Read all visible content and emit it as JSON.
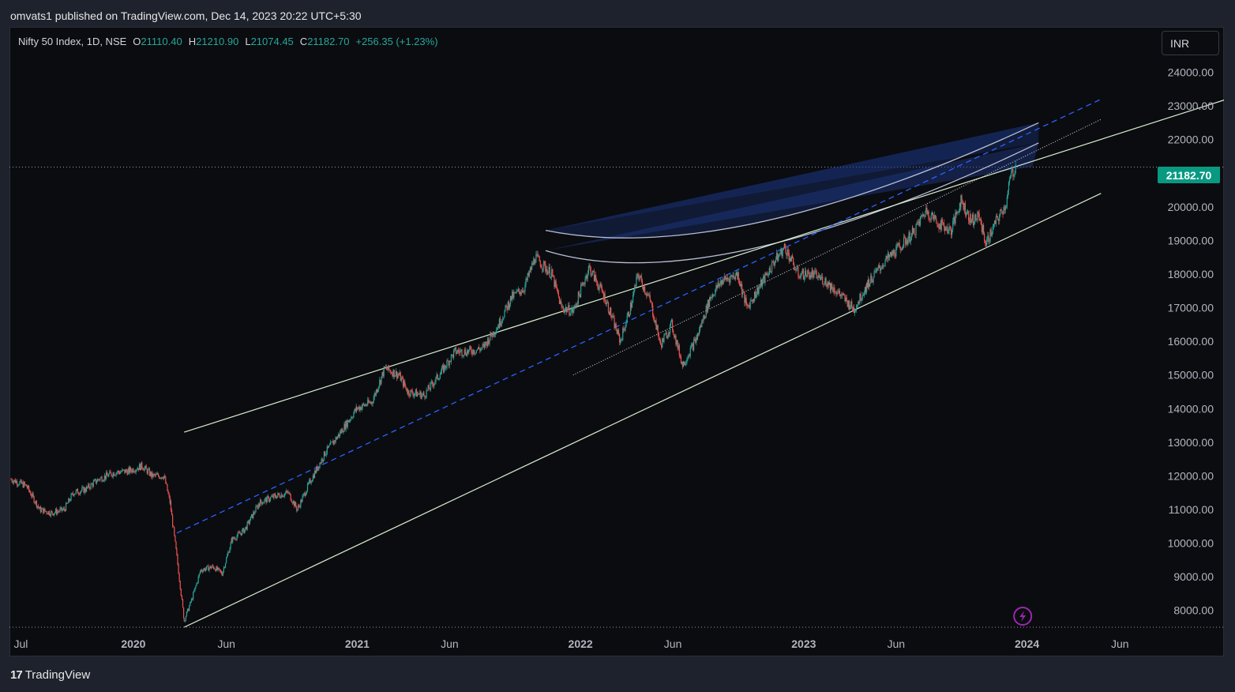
{
  "header": {
    "published_text": "omvats1 published on TradingView.com, Dec 14, 2023 20:22 UTC+5:30"
  },
  "legend": {
    "symbol": "Nifty 50 Index, 1D, NSE",
    "open_label": "O",
    "open_value": "21110.40",
    "high_label": "H",
    "high_value": "21210.90",
    "low_label": "L",
    "low_value": "21074.45",
    "close_label": "C",
    "close_value": "21182.70",
    "change": "+256.35 (+1.23%)"
  },
  "currency_button": "INR",
  "last_price_tag": "21182.70",
  "footer": {
    "brand": "TradingView",
    "logo_text": "17"
  },
  "colors": {
    "background": "#0b0c10",
    "up": "#26a69a",
    "down": "#ef5350",
    "channel": "#d8efcf",
    "midline": "#2962ff",
    "arc": "#b7bfd6",
    "fan_fill": "#1e3a8a",
    "price_tag": "#089981",
    "alert_icon": "#9c27b0"
  },
  "chart_data": {
    "type": "candlestick",
    "title": "Nifty 50 Index, 1D, NSE",
    "ylim": [
      7500,
      25000
    ],
    "y_ticks": [
      "24000.00",
      "23000.00",
      "22000.00",
      "21000.00",
      "20000.00",
      "19000.00",
      "18000.00",
      "17000.00",
      "16000.00",
      "15000.00",
      "14000.00",
      "13000.00",
      "12000.00",
      "11000.00",
      "10000.00",
      "9000.00",
      "8000.00"
    ],
    "x_range": [
      "2019-06-15",
      "2024-07-30"
    ],
    "x_ticks": [
      {
        "label": "Jul",
        "date": "2019-07-01",
        "bold": false
      },
      {
        "label": "2020",
        "date": "2020-01-01",
        "bold": true
      },
      {
        "label": "Jun",
        "date": "2020-06-01",
        "bold": false
      },
      {
        "label": "2021",
        "date": "2021-01-01",
        "bold": true
      },
      {
        "label": "Jun",
        "date": "2021-06-01",
        "bold": false
      },
      {
        "label": "2022",
        "date": "2022-01-01",
        "bold": true
      },
      {
        "label": "Jun",
        "date": "2022-06-01",
        "bold": false
      },
      {
        "label": "2023",
        "date": "2023-01-01",
        "bold": true
      },
      {
        "label": "Jun",
        "date": "2023-06-01",
        "bold": false
      },
      {
        "label": "2024",
        "date": "2024-01-01",
        "bold": true
      },
      {
        "label": "Jun",
        "date": "2024-06-01",
        "bold": false
      }
    ],
    "series": [
      {
        "name": "Nifty 50",
        "points": [
          [
            "2019-06-15",
            11900
          ],
          [
            "2019-07-10",
            11700
          ],
          [
            "2019-08-01",
            11000
          ],
          [
            "2019-08-20",
            10900
          ],
          [
            "2019-09-10",
            11000
          ],
          [
            "2019-09-25",
            11500
          ],
          [
            "2019-10-15",
            11600
          ],
          [
            "2019-11-05",
            11900
          ],
          [
            "2019-12-01",
            12100
          ],
          [
            "2019-12-25",
            12150
          ],
          [
            "2020-01-15",
            12300
          ],
          [
            "2020-02-01",
            12000
          ],
          [
            "2020-02-20",
            12000
          ],
          [
            "2020-03-01",
            11200
          ],
          [
            "2020-03-12",
            9600
          ],
          [
            "2020-03-24",
            7700
          ],
          [
            "2020-04-05",
            8300
          ],
          [
            "2020-04-20",
            9200
          ],
          [
            "2020-05-10",
            9300
          ],
          [
            "2020-05-25",
            9100
          ],
          [
            "2020-06-10",
            10100
          ],
          [
            "2020-07-01",
            10400
          ],
          [
            "2020-07-25",
            11200
          ],
          [
            "2020-08-20",
            11400
          ],
          [
            "2020-09-10",
            11500
          ],
          [
            "2020-09-25",
            11000
          ],
          [
            "2020-10-15",
            11800
          ],
          [
            "2020-11-10",
            12700
          ],
          [
            "2020-12-01",
            13200
          ],
          [
            "2020-12-31",
            14000
          ],
          [
            "2021-01-25",
            14200
          ],
          [
            "2021-02-15",
            15200
          ],
          [
            "2021-03-10",
            15000
          ],
          [
            "2021-03-25",
            14500
          ],
          [
            "2021-04-20",
            14400
          ],
          [
            "2021-05-15",
            15000
          ],
          [
            "2021-06-10",
            15700
          ],
          [
            "2021-07-01",
            15700
          ],
          [
            "2021-07-25",
            15800
          ],
          [
            "2021-08-20",
            16500
          ],
          [
            "2021-09-10",
            17300
          ],
          [
            "2021-10-01",
            17600
          ],
          [
            "2021-10-19",
            18500
          ],
          [
            "2021-11-15",
            18000
          ],
          [
            "2021-12-01",
            17000
          ],
          [
            "2021-12-20",
            16900
          ],
          [
            "2022-01-15",
            18200
          ],
          [
            "2022-02-10",
            17300
          ],
          [
            "2022-03-07",
            16000
          ],
          [
            "2022-03-25",
            17100
          ],
          [
            "2022-04-05",
            18000
          ],
          [
            "2022-04-25",
            17200
          ],
          [
            "2022-05-12",
            15900
          ],
          [
            "2022-05-30",
            16500
          ],
          [
            "2022-06-17",
            15300
          ],
          [
            "2022-07-10",
            16100
          ],
          [
            "2022-08-01",
            17300
          ],
          [
            "2022-08-20",
            17800
          ],
          [
            "2022-09-15",
            18000
          ],
          [
            "2022-09-30",
            17000
          ],
          [
            "2022-10-20",
            17600
          ],
          [
            "2022-11-15",
            18400
          ],
          [
            "2022-12-01",
            18800
          ],
          [
            "2022-12-23",
            18000
          ],
          [
            "2023-01-15",
            18000
          ],
          [
            "2023-02-05",
            17800
          ],
          [
            "2023-03-01",
            17400
          ],
          [
            "2023-03-24",
            16950
          ],
          [
            "2023-04-15",
            17700
          ],
          [
            "2023-05-10",
            18300
          ],
          [
            "2023-06-01",
            18700
          ],
          [
            "2023-06-28",
            19200
          ],
          [
            "2023-07-20",
            19900
          ],
          [
            "2023-08-10",
            19500
          ],
          [
            "2023-08-30",
            19300
          ],
          [
            "2023-09-15",
            20200
          ],
          [
            "2023-10-01",
            19600
          ],
          [
            "2023-10-15",
            19700
          ],
          [
            "2023-10-26",
            18900
          ],
          [
            "2023-11-10",
            19500
          ],
          [
            "2023-11-28",
            20100
          ],
          [
            "2023-12-05",
            20900
          ],
          [
            "2023-12-14",
            21182.7
          ]
        ]
      }
    ],
    "last_price": 21182.7,
    "horizontal_lines": [
      21182.7,
      7500
    ],
    "drawings": {
      "channel_upper": [
        [
          "2020-03-24",
          13300
        ],
        [
          "2023-12-14",
          21200
        ]
      ],
      "channel_lower": [
        [
          "2020-03-24",
          7500
        ],
        [
          "2024-05-01",
          20400
        ]
      ],
      "channel_mid_dashed": [
        [
          "2020-03-12",
          10300
        ],
        [
          "2024-05-01",
          23200
        ]
      ],
      "trendline_dotted": [
        [
          "2021-12-20",
          15000
        ],
        [
          "2024-05-01",
          22600
        ]
      ]
    }
  }
}
